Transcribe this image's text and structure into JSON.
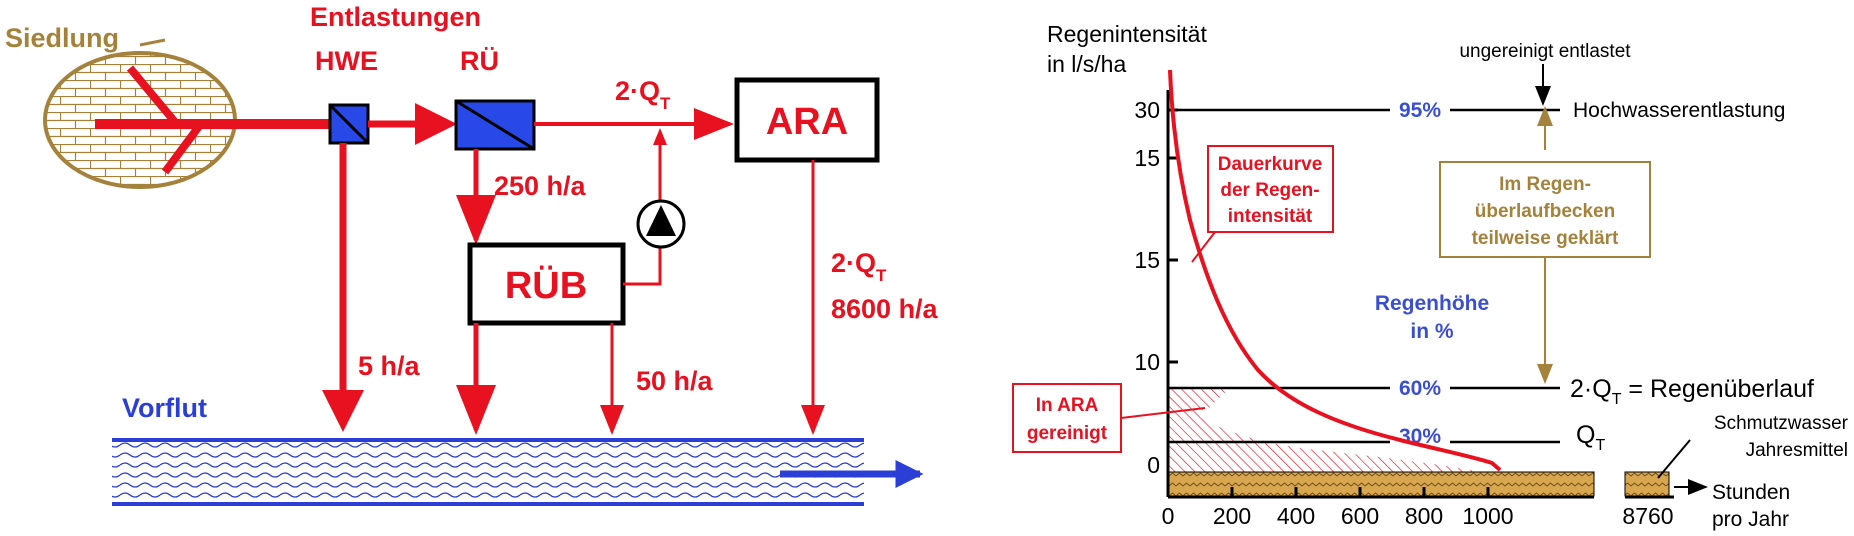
{
  "left": {
    "siedlung": "Siedlung",
    "entlastungen": "Entlastungen",
    "hwe": "HWE",
    "ru": "RÜ",
    "flow_q": "2·Q",
    "flow_q_sub": "T",
    "ara": "ARA",
    "h250": "250 h/a",
    "rub": "RÜB",
    "ara_q": "2·Q",
    "ara_q_sub": "T",
    "h8600": "8600 h/a",
    "h5": "5 h/a",
    "h50": "50 h/a",
    "vorflut": "Vorflut"
  },
  "right": {
    "ylabel_1": "Regenintensität",
    "ylabel_2": "in l/s/ha",
    "yticks": [
      "30",
      "15",
      "15",
      "10",
      "0"
    ],
    "xticks": [
      "0",
      "200",
      "400",
      "600",
      "800",
      "1000"
    ],
    "x_last": "8760",
    "xlabel_1": "Stunden",
    "xlabel_2": "pro Jahr",
    "top_label": "ungereinigt entlastet",
    "pct_95": "95%",
    "hwe_label": "Hochwasserentlastung",
    "dauer_1": "Dauerkurve",
    "dauer_2": "der Regen-",
    "dauer_3": "intensität",
    "rub_1": "Im Regen-",
    "rub_2": "überlaufbecken",
    "rub_3": "teilweise geklärt",
    "regen_1": "Regenhöhe",
    "regen_2": "in %",
    "pct_60": "60%",
    "q_ru": "2·Q",
    "q_ru_sub": "T",
    "q_ru_rest": " = Regenüberlauf",
    "pct_30": "30%",
    "qt": "Q",
    "qt_sub": "T",
    "ara_1": "In ARA",
    "ara_2": "gereinigt",
    "schmutz_1": "Schmutzwasser",
    "schmutz_2": "Jahresmittel"
  },
  "colors": {
    "red": "#e8111f",
    "blue": "#2b3fd6",
    "brown": "#a5823c",
    "pct_blue": "#3a4fd0",
    "box_blue": "#2849e8",
    "sand": "#d9a650"
  }
}
